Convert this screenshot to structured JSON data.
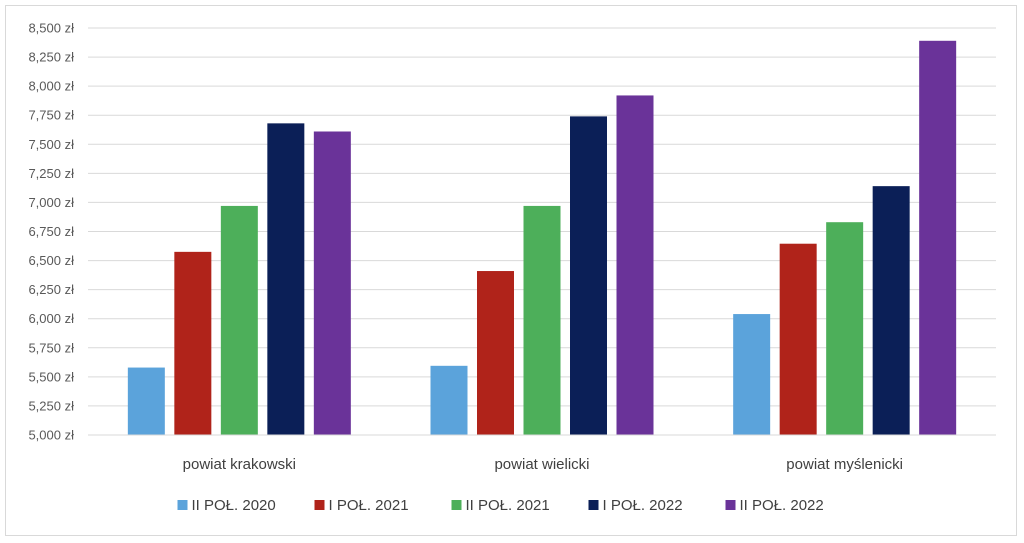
{
  "chart_data": {
    "type": "bar",
    "categories": [
      "powiat krakowski",
      "powiat wielicki",
      "powiat myślenicki"
    ],
    "series": [
      {
        "name": "II POŁ. 2020",
        "color": "#5ba3db",
        "values": [
          5580,
          5595,
          6040
        ]
      },
      {
        "name": "I POŁ. 2021",
        "color": "#b0231a",
        "values": [
          6575,
          6410,
          6645
        ]
      },
      {
        "name": "II POŁ. 2021",
        "color": "#4daf5a",
        "values": [
          6970,
          6970,
          6830
        ]
      },
      {
        "name": "I POŁ. 2022",
        "color": "#0b1f57",
        "values": [
          7680,
          7740,
          7140
        ]
      },
      {
        "name": "II POŁ. 2022",
        "color": "#6a3399",
        "values": [
          7610,
          7920,
          8390
        ]
      }
    ],
    "yticks": [
      "5,000 zł",
      "5,250 zł",
      "5,500 zł",
      "5,750 zł",
      "6,000 zł",
      "6,250 zł",
      "6,500 zł",
      "6,750 zł",
      "7,000 zł",
      "7,250 zł",
      "7,500 zł",
      "7,750 zł",
      "8,000 zł",
      "8,250 zł",
      "8,500 zł"
    ],
    "ylim": [
      5000,
      8500
    ],
    "ystep": 250,
    "grid": true,
    "legend_position": "bottom",
    "title": "",
    "xlabel": "",
    "ylabel": ""
  }
}
